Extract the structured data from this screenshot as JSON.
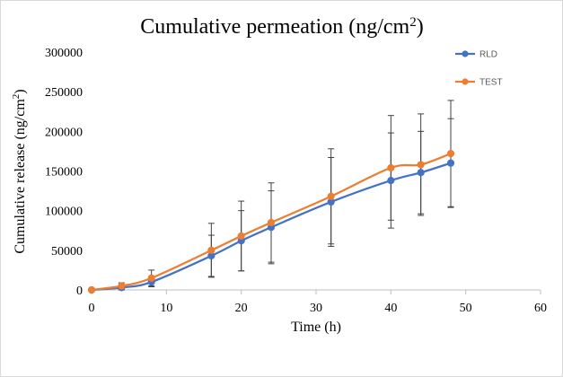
{
  "chart_data": {
    "type": "line",
    "title": "Cumulative permeation (ng/cm",
    "title_superscript": "2",
    "title_suffix": ")",
    "xlabel": "Time (h)",
    "ylabel": "Cumulative release (ng/cm",
    "ylabel_superscript": "2",
    "ylabel_suffix": ")",
    "xlim": [
      0,
      60
    ],
    "ylim": [
      0,
      300000
    ],
    "xticks": [
      0,
      10,
      20,
      30,
      40,
      50,
      60
    ],
    "yticks": [
      0,
      50000,
      100000,
      150000,
      200000,
      250000,
      300000
    ],
    "grid": false,
    "smooth": true,
    "legend_position": "top-right",
    "series": [
      {
        "name": "RLD",
        "color": "#4472C4",
        "x": [
          0,
          4,
          8,
          16,
          20,
          24,
          32,
          40,
          44,
          48
        ],
        "y": [
          0,
          3000,
          10000,
          43000,
          62000,
          79000,
          111000,
          138000,
          148000,
          160000
        ],
        "error": [
          0,
          3000,
          6000,
          26000,
          38000,
          46000,
          56000,
          60000,
          52000,
          56000
        ]
      },
      {
        "name": "TEST",
        "color": "#ED7D31",
        "x": [
          0,
          4,
          8,
          16,
          20,
          24,
          32,
          40,
          44,
          48
        ],
        "y": [
          0,
          5000,
          15000,
          50000,
          68000,
          85000,
          118000,
          154000,
          158000,
          172000
        ],
        "error": [
          0,
          4000,
          10000,
          34000,
          44000,
          50000,
          60000,
          66000,
          64000,
          67000
        ]
      }
    ]
  }
}
